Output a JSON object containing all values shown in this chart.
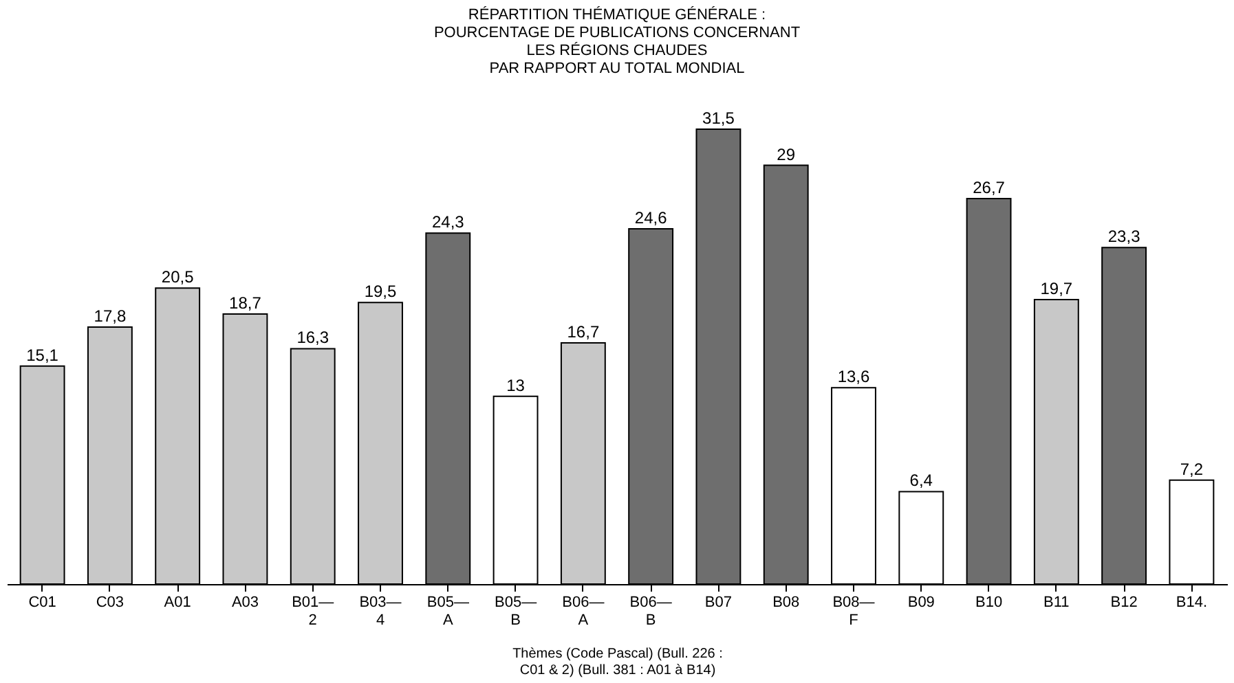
{
  "chart_data": {
    "type": "bar",
    "title": "RÉPARTITION THÉMATIQUE GÉNÉRALE :\nPOURCENTAGE DE PUBLICATIONS CONCERNANT\nLES RÉGIONS CHAUDES\nPAR RAPPORT AU TOTAL MONDIAL",
    "xlabel": "Thèmes (Code Pascal) (Bull. 226 :\nC01 & 2) (Bull. 381 : A01 à B14)",
    "categories": [
      "C01",
      "C03",
      "A01",
      "A03",
      "B01—\n2",
      "B03—\n4",
      "B05—\nA",
      "B05—\nB",
      "B06—\nA",
      "B06—\nB",
      "B07",
      "B08",
      "B08—\nF",
      "B09",
      "B10",
      "B11",
      "B12",
      "B14."
    ],
    "values": [
      15.1,
      17.8,
      20.5,
      18.7,
      16.3,
      19.5,
      24.3,
      13,
      16.7,
      24.6,
      31.5,
      29,
      13.6,
      6.4,
      26.7,
      19.7,
      23.3,
      7.2
    ],
    "colors": [
      "#c8c8c8",
      "#c8c8c8",
      "#c8c8c8",
      "#c8c8c8",
      "#c8c8c8",
      "#c8c8c8",
      "#6e6e6e",
      "#ffffff",
      "#c8c8c8",
      "#6e6e6e",
      "#6e6e6e",
      "#6e6e6e",
      "#ffffff",
      "#ffffff",
      "#6e6e6e",
      "#c8c8c8",
      "#6e6e6e",
      "#ffffff"
    ],
    "value_labels": [
      "15,1",
      "17,8",
      "20,5",
      "18,7",
      "16,3",
      "19,5",
      "24,3",
      "13",
      "16,7",
      "24,6",
      "31,5",
      "29",
      "13,6",
      "6,4",
      "26,7",
      "19,7",
      "23,3",
      "7,2"
    ],
    "tick_labels": "x",
    "grid": false
  }
}
